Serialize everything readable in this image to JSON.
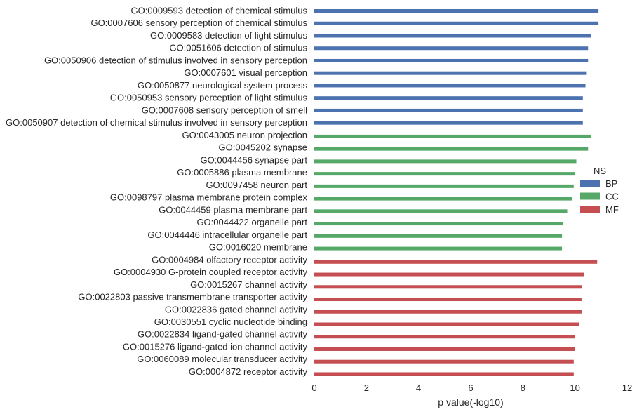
{
  "chart_data": {
    "type": "bar",
    "orientation": "horizontal",
    "xlabel": "p value(-log10)",
    "ylabel": "",
    "xlim": [
      0,
      12
    ],
    "xticks": [
      0,
      2,
      4,
      6,
      8,
      10,
      12
    ],
    "grid": false,
    "legend": {
      "title": "NS",
      "position": "right",
      "entries": [
        {
          "name": "BP",
          "color": "#4c72b0"
        },
        {
          "name": "CC",
          "color": "#55a868"
        },
        {
          "name": "MF",
          "color": "#c44e52"
        }
      ]
    },
    "categories": [
      {
        "label": "GO:0009593 detection of chemical stimulus",
        "value": 10.9,
        "group": "BP"
      },
      {
        "label": "GO:0007606 sensory perception of chemical stimulus",
        "value": 10.9,
        "group": "BP"
      },
      {
        "label": "GO:0009583 detection of light stimulus",
        "value": 10.6,
        "group": "BP"
      },
      {
        "label": "GO:0051606 detection of stimulus",
        "value": 10.5,
        "group": "BP"
      },
      {
        "label": "GO:0050906 detection of stimulus involved in sensory perception",
        "value": 10.5,
        "group": "BP"
      },
      {
        "label": "GO:0007601 visual perception",
        "value": 10.45,
        "group": "BP"
      },
      {
        "label": "GO:0050877 neurological system process",
        "value": 10.4,
        "group": "BP"
      },
      {
        "label": "GO:0050953 sensory perception of light stimulus",
        "value": 10.3,
        "group": "BP"
      },
      {
        "label": "GO:0007608 sensory perception of smell",
        "value": 10.3,
        "group": "BP"
      },
      {
        "label": "GO:0050907 detection of chemical stimulus involved in sensory perception",
        "value": 10.3,
        "group": "BP"
      },
      {
        "label": "GO:0043005 neuron projection",
        "value": 10.6,
        "group": "CC"
      },
      {
        "label": "GO:0045202 synapse",
        "value": 10.5,
        "group": "CC"
      },
      {
        "label": "GO:0044456 synapse part",
        "value": 10.05,
        "group": "CC"
      },
      {
        "label": "GO:0005886 plasma membrane",
        "value": 10.0,
        "group": "CC"
      },
      {
        "label": "GO:0097458 neuron part",
        "value": 9.95,
        "group": "CC"
      },
      {
        "label": "GO:0098797 plasma membrane protein complex",
        "value": 9.9,
        "group": "CC"
      },
      {
        "label": "GO:0044459 plasma membrane part",
        "value": 9.7,
        "group": "CC"
      },
      {
        "label": "GO:0044422 organelle part",
        "value": 9.55,
        "group": "CC"
      },
      {
        "label": "GO:0044446 intracellular organelle part",
        "value": 9.5,
        "group": "CC"
      },
      {
        "label": "GO:0016020 membrane",
        "value": 9.5,
        "group": "CC"
      },
      {
        "label": "GO:0004984 olfactory receptor activity",
        "value": 10.85,
        "group": "MF"
      },
      {
        "label": "GO:0004930 G-protein coupled receptor activity",
        "value": 10.35,
        "group": "MF"
      },
      {
        "label": "GO:0015267 channel activity",
        "value": 10.25,
        "group": "MF"
      },
      {
        "label": "GO:0022803 passive transmembrane transporter activity",
        "value": 10.25,
        "group": "MF"
      },
      {
        "label": "GO:0022836 gated channel activity",
        "value": 10.25,
        "group": "MF"
      },
      {
        "label": "GO:0030551 cyclic nucleotide binding",
        "value": 10.15,
        "group": "MF"
      },
      {
        "label": "GO:0022834 ligand-gated channel activity",
        "value": 10.0,
        "group": "MF"
      },
      {
        "label": "GO:0015276 ligand-gated ion channel activity",
        "value": 10.0,
        "group": "MF"
      },
      {
        "label": "GO:0060089 molecular transducer activity",
        "value": 9.95,
        "group": "MF"
      },
      {
        "label": "GO:0004872 receptor activity",
        "value": 9.95,
        "group": "MF"
      }
    ]
  }
}
